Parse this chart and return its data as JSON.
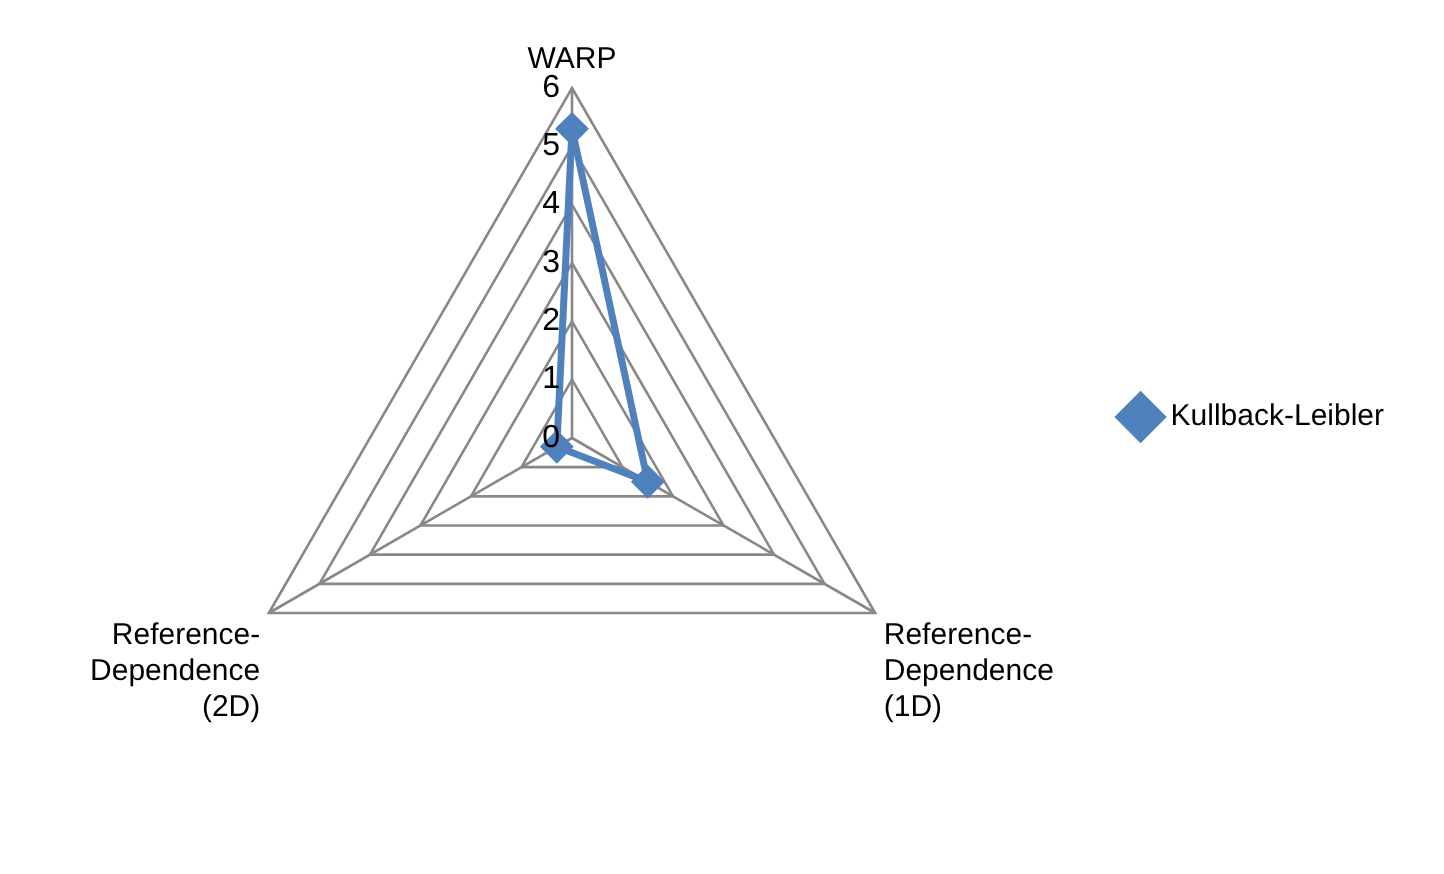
{
  "chart_data": {
    "type": "radar",
    "categories": [
      "WARP",
      "Reference-Dependence (1D)",
      "Reference-Dependence (2D)"
    ],
    "series": [
      {
        "name": "Kullback-Leibler",
        "color": "#4f81bd",
        "values": [
          5.3,
          1.5,
          0.3
        ]
      }
    ],
    "ylim": [
      0,
      6
    ],
    "yticks": [
      0,
      1,
      2,
      3,
      4,
      5,
      6
    ],
    "grid": true,
    "legend": "right",
    "marker": "diamond"
  }
}
